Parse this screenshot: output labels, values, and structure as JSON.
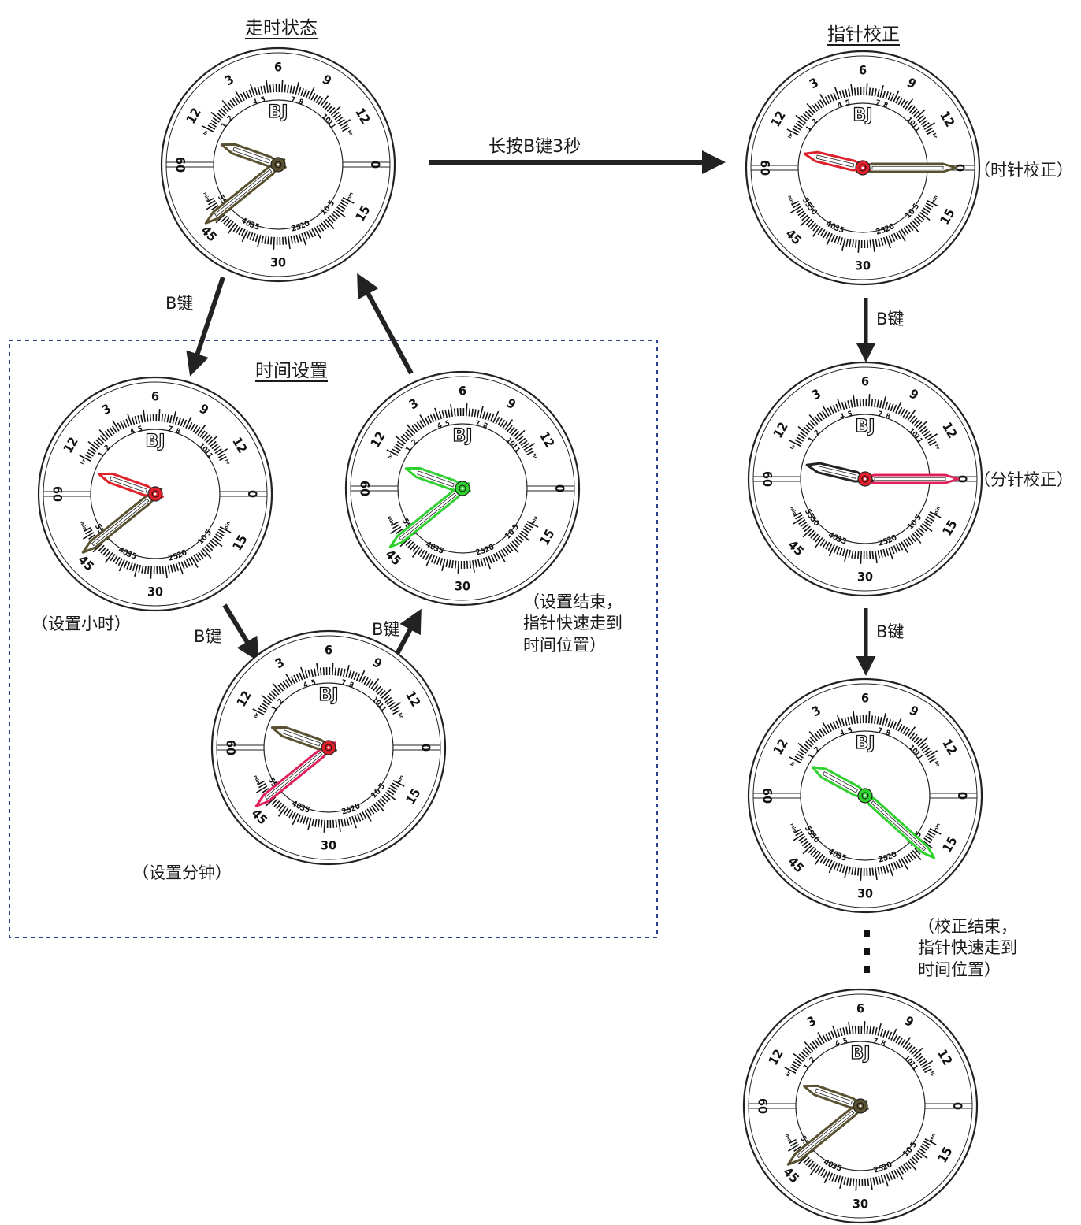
{
  "sections": {
    "running": "走时状态",
    "hand_correction": "指针校正",
    "time_setting": "时间设置"
  },
  "arrows": {
    "long_press": "长按B键3秒",
    "b_key": "B键"
  },
  "captions": {
    "set_hour": "（设置小时）",
    "set_minute": "（设置分钟）",
    "setting_end": [
      "（设置结束，",
      "指针快速走到",
      "时间位置）"
    ],
    "hour_hand_correction": "（时针校正）",
    "minute_hand_correction": "（分针校正）",
    "correction_end": [
      "（校正结束，",
      "指针快速走到",
      "时间位置）"
    ]
  },
  "dial": {
    "brand": "BJ",
    "hour_numbers": [
      "1",
      "2",
      "3",
      "4",
      "5",
      "6",
      "7",
      "8",
      "9",
      "10",
      "11",
      "12"
    ],
    "minute_numbers": [
      "0",
      "5",
      "10",
      "15",
      "20",
      "25",
      "30",
      "35",
      "40",
      "45",
      "50",
      "55",
      "60"
    ],
    "scale_marks": [
      "hr",
      "min"
    ]
  },
  "colors": {
    "normal_hand": "#5a5130",
    "selected_red": "#e0202a",
    "selected_green": "#2fd12f",
    "crimson": "#e0205a",
    "outline": "#222222"
  },
  "clocks": [
    {
      "id": "running",
      "label": "走时状态",
      "hour_value": 1.3,
      "minute_value": 47,
      "state": "normal"
    },
    {
      "id": "set-hour",
      "label": "设置小时",
      "hour_value": 1.3,
      "minute_value": 47,
      "state": "hour-red"
    },
    {
      "id": "set-minute",
      "label": "设置分钟",
      "hour_value": 1.3,
      "minute_value": 47,
      "state": "minute-red"
    },
    {
      "id": "set-end",
      "label": "设置结束",
      "hour_value": 1.3,
      "minute_value": 47,
      "state": "all-green"
    },
    {
      "id": "hour-corr",
      "label": "时针校正",
      "hour_value": 0.9,
      "minute_value": 0,
      "state": "hour-red"
    },
    {
      "id": "min-corr",
      "label": "分针校正",
      "hour_value": 0.9,
      "minute_value": 0,
      "state": "minute-red"
    },
    {
      "id": "corr-end",
      "label": "校正结束",
      "hour_value": 1.9,
      "minute_value": 14,
      "state": "all-green"
    },
    {
      "id": "final",
      "label": "走时状态",
      "hour_value": 1.3,
      "minute_value": 47,
      "state": "normal"
    }
  ]
}
